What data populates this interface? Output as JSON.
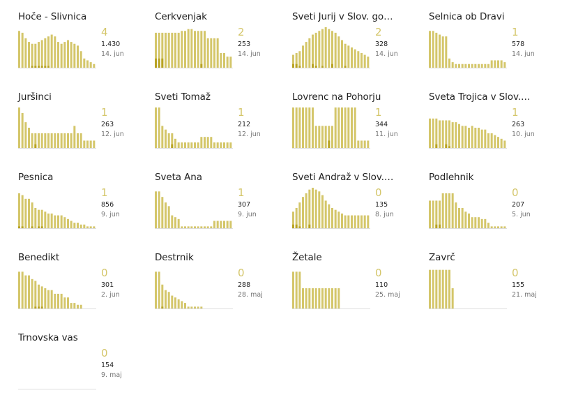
{
  "colors": {
    "bar": "#d4c66a",
    "bar_dark": "#b8a323",
    "axis": "#dddddd"
  },
  "chart_data": [
    {
      "type": "bar",
      "name": "Hoče - Slivnica",
      "new": "4",
      "total": "1.430",
      "date": "14. jun",
      "values": [
        20,
        19,
        16,
        14,
        13,
        13,
        14,
        15,
        16,
        17,
        18,
        17,
        14,
        13,
        14,
        15,
        14,
        13,
        12,
        9,
        5,
        4,
        3,
        2
      ],
      "dark": [
        0,
        0,
        0,
        0,
        1,
        1,
        1,
        1,
        1,
        1,
        0,
        0,
        0,
        0,
        0,
        0,
        0,
        0,
        0,
        0,
        0,
        0,
        0,
        0
      ]
    },
    {
      "type": "bar",
      "name": "Cerkvenjak",
      "new": "2",
      "total": "253",
      "date": "14. jun",
      "values": [
        19,
        19,
        19,
        19,
        19,
        19,
        19,
        19,
        20,
        20,
        21,
        21,
        20,
        20,
        20,
        20,
        16,
        16,
        16,
        16,
        8,
        8,
        6,
        6
      ],
      "dark": [
        5,
        5,
        5,
        0,
        0,
        0,
        0,
        0,
        0,
        0,
        0,
        0,
        0,
        0,
        2,
        0,
        0,
        0,
        0,
        0,
        0,
        0,
        0,
        0
      ]
    },
    {
      "type": "bar",
      "name": "Sveti Jurij v Slov. go…",
      "new": "2",
      "total": "328",
      "date": "14. jun",
      "values": [
        7,
        8,
        9,
        12,
        14,
        16,
        18,
        19,
        20,
        21,
        22,
        21,
        20,
        19,
        17,
        15,
        13,
        12,
        11,
        10,
        9,
        8,
        7,
        6
      ],
      "dark": [
        2,
        2,
        1,
        0,
        0,
        0,
        2,
        1,
        0,
        1,
        0,
        0,
        2,
        0,
        0,
        0,
        1,
        0,
        0,
        0,
        0,
        0,
        0,
        0
      ]
    },
    {
      "type": "bar",
      "name": "Selnica ob Dravi",
      "new": "1",
      "total": "578",
      "date": "14. jun",
      "values": [
        20,
        20,
        19,
        18,
        17,
        17,
        5,
        3,
        2,
        2,
        2,
        2,
        2,
        2,
        2,
        2,
        2,
        2,
        2,
        4,
        4,
        4,
        4,
        3
      ],
      "dark": [
        0,
        0,
        0,
        0,
        0,
        0,
        0,
        0,
        0,
        0,
        0,
        0,
        0,
        0,
        0,
        0,
        0,
        0,
        0,
        0,
        0,
        0,
        0,
        0
      ]
    },
    {
      "type": "bar",
      "name": "Juršinci",
      "new": "1",
      "total": "263",
      "date": "12. jun",
      "values": [
        22,
        19,
        14,
        11,
        8,
        8,
        8,
        8,
        8,
        8,
        8,
        8,
        8,
        8,
        8,
        8,
        8,
        12,
        8,
        8,
        4,
        4,
        4,
        4
      ],
      "dark": [
        0,
        0,
        0,
        0,
        0,
        2,
        0,
        0,
        0,
        0,
        0,
        0,
        0,
        0,
        0,
        0,
        0,
        0,
        0,
        0,
        0,
        0,
        0,
        0
      ]
    },
    {
      "type": "bar",
      "name": "Sveti Tomaž",
      "new": "1",
      "total": "212",
      "date": "12. jun",
      "values": [
        22,
        22,
        12,
        10,
        8,
        8,
        5,
        3,
        3,
        3,
        3,
        3,
        3,
        3,
        6,
        6,
        6,
        6,
        3,
        3,
        3,
        3,
        3,
        3
      ],
      "dark": [
        0,
        0,
        0,
        0,
        0,
        2,
        0,
        0,
        0,
        0,
        0,
        0,
        0,
        0,
        0,
        0,
        0,
        0,
        0,
        0,
        0,
        0,
        0,
        0
      ]
    },
    {
      "type": "bar",
      "name": "Lovrenc na Pohorju",
      "new": "1",
      "total": "344",
      "date": "11. jun",
      "values": [
        22,
        22,
        22,
        22,
        22,
        22,
        22,
        12,
        12,
        12,
        12,
        12,
        12,
        22,
        22,
        22,
        22,
        22,
        22,
        22,
        4,
        4,
        4,
        4
      ],
      "dark": [
        0,
        0,
        0,
        0,
        0,
        0,
        0,
        0,
        0,
        0,
        0,
        4,
        0,
        0,
        0,
        0,
        0,
        0,
        0,
        0,
        0,
        0,
        0,
        0
      ]
    },
    {
      "type": "bar",
      "name": "Sveta Trojica v Slov.…",
      "new": "1",
      "total": "263",
      "date": "10. jun",
      "values": [
        16,
        16,
        16,
        15,
        15,
        15,
        15,
        14,
        14,
        13,
        12,
        12,
        11,
        12,
        11,
        11,
        10,
        10,
        8,
        8,
        7,
        6,
        5,
        4
      ],
      "dark": [
        0,
        0,
        2,
        0,
        0,
        2,
        1,
        0,
        0,
        0,
        0,
        0,
        0,
        0,
        0,
        0,
        0,
        0,
        0,
        0,
        0,
        0,
        0,
        0
      ]
    },
    {
      "type": "bar",
      "name": "Pesnica",
      "new": "1",
      "total": "856",
      "date": "9. jun",
      "values": [
        19,
        18,
        16,
        16,
        14,
        11,
        10,
        10,
        9,
        8,
        8,
        7,
        7,
        7,
        6,
        5,
        4,
        3,
        3,
        2,
        2,
        1,
        1,
        1
      ],
      "dark": [
        1,
        1,
        0,
        0,
        1,
        0,
        1,
        1,
        0,
        0,
        0,
        0,
        0,
        0,
        0,
        0,
        0,
        0,
        0,
        0,
        0,
        0,
        0,
        0
      ]
    },
    {
      "type": "bar",
      "name": "Sveta Ana",
      "new": "1",
      "total": "307",
      "date": "9. jun",
      "values": [
        20,
        20,
        17,
        14,
        12,
        7,
        6,
        5,
        1,
        1,
        1,
        1,
        1,
        1,
        1,
        1,
        1,
        1,
        4,
        4,
        4,
        4,
        4,
        4
      ],
      "dark": [
        0,
        0,
        0,
        0,
        0,
        0,
        0,
        0,
        0,
        0,
        0,
        0,
        0,
        0,
        0,
        0,
        0,
        0,
        0,
        0,
        0,
        0,
        0,
        0
      ]
    },
    {
      "type": "bar",
      "name": "Sveti Andraž v Slov.…",
      "new": "0",
      "total": "135",
      "date": "8. jun",
      "values": [
        9,
        11,
        14,
        17,
        19,
        21,
        22,
        21,
        20,
        18,
        15,
        13,
        11,
        10,
        9,
        8,
        7,
        7,
        7,
        7,
        7,
        7,
        7,
        7
      ],
      "dark": [
        2,
        2,
        1,
        0,
        0,
        2,
        0,
        0,
        0,
        0,
        0,
        0,
        0,
        0,
        0,
        0,
        0,
        0,
        0,
        0,
        0,
        0,
        0,
        0
      ]
    },
    {
      "type": "bar",
      "name": "Podlehnik",
      "new": "0",
      "total": "207",
      "date": "5. jun",
      "values": [
        15,
        15,
        15,
        15,
        19,
        19,
        19,
        19,
        14,
        11,
        11,
        9,
        8,
        6,
        6,
        6,
        5,
        5,
        3,
        1,
        1,
        1,
        1,
        1
      ],
      "dark": [
        0,
        0,
        2,
        2,
        0,
        0,
        0,
        0,
        0,
        0,
        0,
        0,
        0,
        0,
        0,
        0,
        0,
        0,
        0,
        0,
        0,
        0,
        0,
        0
      ]
    },
    {
      "type": "bar",
      "name": "Benedikt",
      "new": "0",
      "total": "301",
      "date": "2. jun",
      "values": [
        20,
        20,
        18,
        18,
        16,
        15,
        13,
        12,
        11,
        10,
        10,
        8,
        8,
        8,
        6,
        6,
        3,
        3,
        2,
        2,
        0,
        0,
        0,
        0
      ],
      "dark": [
        0,
        0,
        0,
        0,
        0,
        1,
        1,
        1,
        0,
        0,
        0,
        0,
        0,
        0,
        0,
        0,
        0,
        0,
        0,
        0,
        0,
        0,
        0,
        0
      ]
    },
    {
      "type": "bar",
      "name": "Destrnik",
      "new": "0",
      "total": "288",
      "date": "28. maj",
      "values": [
        20,
        20,
        13,
        10,
        9,
        7,
        6,
        5,
        4,
        3,
        1,
        1,
        1,
        1,
        1,
        0,
        0,
        0,
        0,
        0,
        0,
        0,
        0,
        0
      ],
      "dark": [
        0,
        0,
        1,
        0,
        0,
        0,
        0,
        0,
        0,
        0,
        0,
        0,
        0,
        0,
        0,
        0,
        0,
        0,
        0,
        0,
        0,
        0,
        0,
        0
      ]
    },
    {
      "type": "bar",
      "name": "Žetale",
      "new": "0",
      "total": "110",
      "date": "25. maj",
      "values": [
        20,
        20,
        20,
        11,
        11,
        11,
        11,
        11,
        11,
        11,
        11,
        11,
        11,
        11,
        11,
        0,
        0,
        0,
        0,
        0,
        0,
        0,
        0,
        0
      ],
      "dark": [
        0,
        0,
        0,
        0,
        0,
        0,
        0,
        0,
        0,
        0,
        0,
        0,
        0,
        0,
        0,
        0,
        0,
        0,
        0,
        0,
        0,
        0,
        0,
        0
      ]
    },
    {
      "type": "bar",
      "name": "Zavrč",
      "new": "0",
      "total": "155",
      "date": "21. maj",
      "values": [
        21,
        21,
        21,
        21,
        21,
        21,
        21,
        11,
        0,
        0,
        0,
        0,
        0,
        0,
        0,
        0,
        0,
        0,
        0,
        0,
        0,
        0,
        0,
        0
      ],
      "dark": [
        0,
        0,
        0,
        0,
        0,
        0,
        0,
        0,
        0,
        0,
        0,
        0,
        0,
        0,
        0,
        0,
        0,
        0,
        0,
        0,
        0,
        0,
        0,
        0
      ]
    },
    {
      "type": "bar",
      "name": "Trnovska vas",
      "new": "0",
      "total": "154",
      "date": "9. maj",
      "values": [
        0,
        0,
        0,
        0,
        0,
        0,
        0,
        0,
        0,
        0,
        0,
        0,
        0,
        0,
        0,
        0,
        0,
        0,
        0,
        0,
        0,
        0,
        0,
        0
      ],
      "dark": [
        0,
        0,
        0,
        0,
        0,
        0,
        0,
        0,
        0,
        0,
        0,
        0,
        0,
        0,
        0,
        0,
        0,
        0,
        0,
        0,
        0,
        0,
        0,
        0
      ]
    }
  ]
}
